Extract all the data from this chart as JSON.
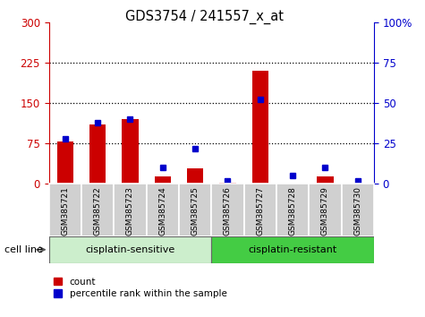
{
  "title": "GDS3754 / 241557_x_at",
  "samples": [
    "GSM385721",
    "GSM385722",
    "GSM385723",
    "GSM385724",
    "GSM385725",
    "GSM385726",
    "GSM385727",
    "GSM385728",
    "GSM385729",
    "GSM385730"
  ],
  "count": [
    78,
    110,
    120,
    14,
    28,
    2,
    210,
    1,
    14,
    1
  ],
  "percentile": [
    28,
    38,
    40,
    10,
    22,
    2,
    52,
    5,
    10,
    2
  ],
  "left_ylim": [
    0,
    300
  ],
  "right_ylim": [
    0,
    100
  ],
  "left_yticks": [
    0,
    75,
    150,
    225,
    300
  ],
  "right_yticks": [
    0,
    25,
    50,
    75,
    100
  ],
  "right_yticklabels": [
    "0",
    "25",
    "50",
    "75",
    "100%"
  ],
  "left_color": "#cc0000",
  "right_color": "#0000cc",
  "bar_color": "#cc0000",
  "blue_color": "#0000cc",
  "group1_label": "cisplatin-sensitive",
  "group2_label": "cisplatin-resistant",
  "group1_bg": "#cceecc",
  "group2_bg": "#44cc44",
  "cell_line_label": "cell line",
  "legend_count": "count",
  "legend_pct": "percentile rank within the sample",
  "xlabel_bg": "#d0d0d0",
  "n_group1": 5,
  "n_group2": 5
}
